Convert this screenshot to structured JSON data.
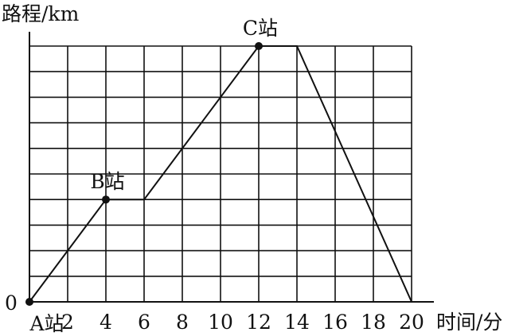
{
  "chart_data": {
    "type": "line",
    "title": "",
    "xlabel": "时间/分",
    "ylabel": "路程/km",
    "origin_label": "0",
    "x_ticks": [
      2,
      4,
      6,
      8,
      10,
      12,
      14,
      16,
      18,
      20
    ],
    "xlim": [
      0,
      20
    ],
    "ylim": [
      0,
      10
    ],
    "grid": true,
    "series": [
      {
        "x": [
          0,
          4,
          6,
          12,
          14,
          20
        ],
        "y": [
          0,
          4,
          4,
          10,
          10,
          0
        ]
      }
    ],
    "points": [
      {
        "label": "A站",
        "x": 0,
        "y": 0
      },
      {
        "label": "B站",
        "x": 4,
        "y": 4
      },
      {
        "label": "C站",
        "x": 12,
        "y": 10
      }
    ],
    "line_color": "#111111",
    "grid_color": "#111111"
  }
}
